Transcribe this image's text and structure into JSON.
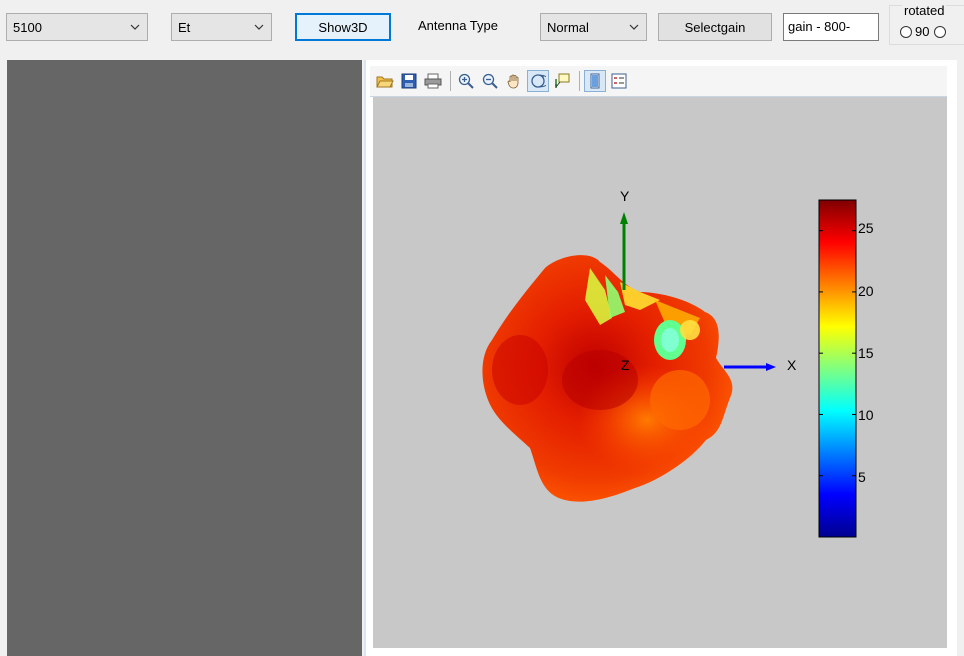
{
  "controls": {
    "frequency_select": "5100",
    "field_select": "Et",
    "show3d_label": "Show3D",
    "antenna_type_label": "Antenna Type",
    "antenna_type_select": "Normal",
    "selectgain_label": "Selectgain",
    "gain_textbox": "gain - 800-",
    "rotated_group_title": "rotated",
    "rotated_option_90": "90"
  },
  "figure": {
    "toolbar_icons": [
      "open-icon",
      "save-icon",
      "print-icon",
      "zoom-in-icon",
      "zoom-out-icon",
      "pan-icon",
      "rotate-3d-icon",
      "data-cursor-icon",
      "colorbar-icon",
      "legend-icon"
    ],
    "axis_x_label": "X",
    "axis_y_label": "Y",
    "axis_z_label": "Z",
    "colorbar_ticks": [
      "25",
      "20",
      "15",
      "10",
      "5"
    ],
    "colorbar_tick_values": [
      25,
      20,
      15,
      10,
      5
    ],
    "colorbar_range": [
      0,
      27.5
    ],
    "colormap": "jet",
    "colors": {
      "x_axis": "#0000ff",
      "y_axis": "#008000"
    }
  }
}
